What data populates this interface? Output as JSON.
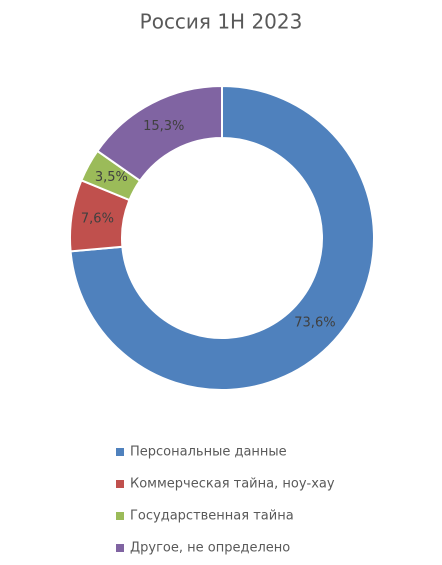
{
  "chart_data": {
    "type": "donut",
    "title": "Россия 1H 2023",
    "categories": [
      "Персональные данные",
      "Коммерческая тайна, ноу-хау",
      "Государственная тайна",
      "Другое, не определено"
    ],
    "values": [
      73.6,
      7.6,
      3.5,
      15.3
    ],
    "value_labels": [
      "73,6%",
      "7,6%",
      "3,5%",
      "15,3%"
    ],
    "colors": [
      "#4f81bd",
      "#c0504d",
      "#9bbb59",
      "#8064a2"
    ],
    "legend": "bottom"
  }
}
